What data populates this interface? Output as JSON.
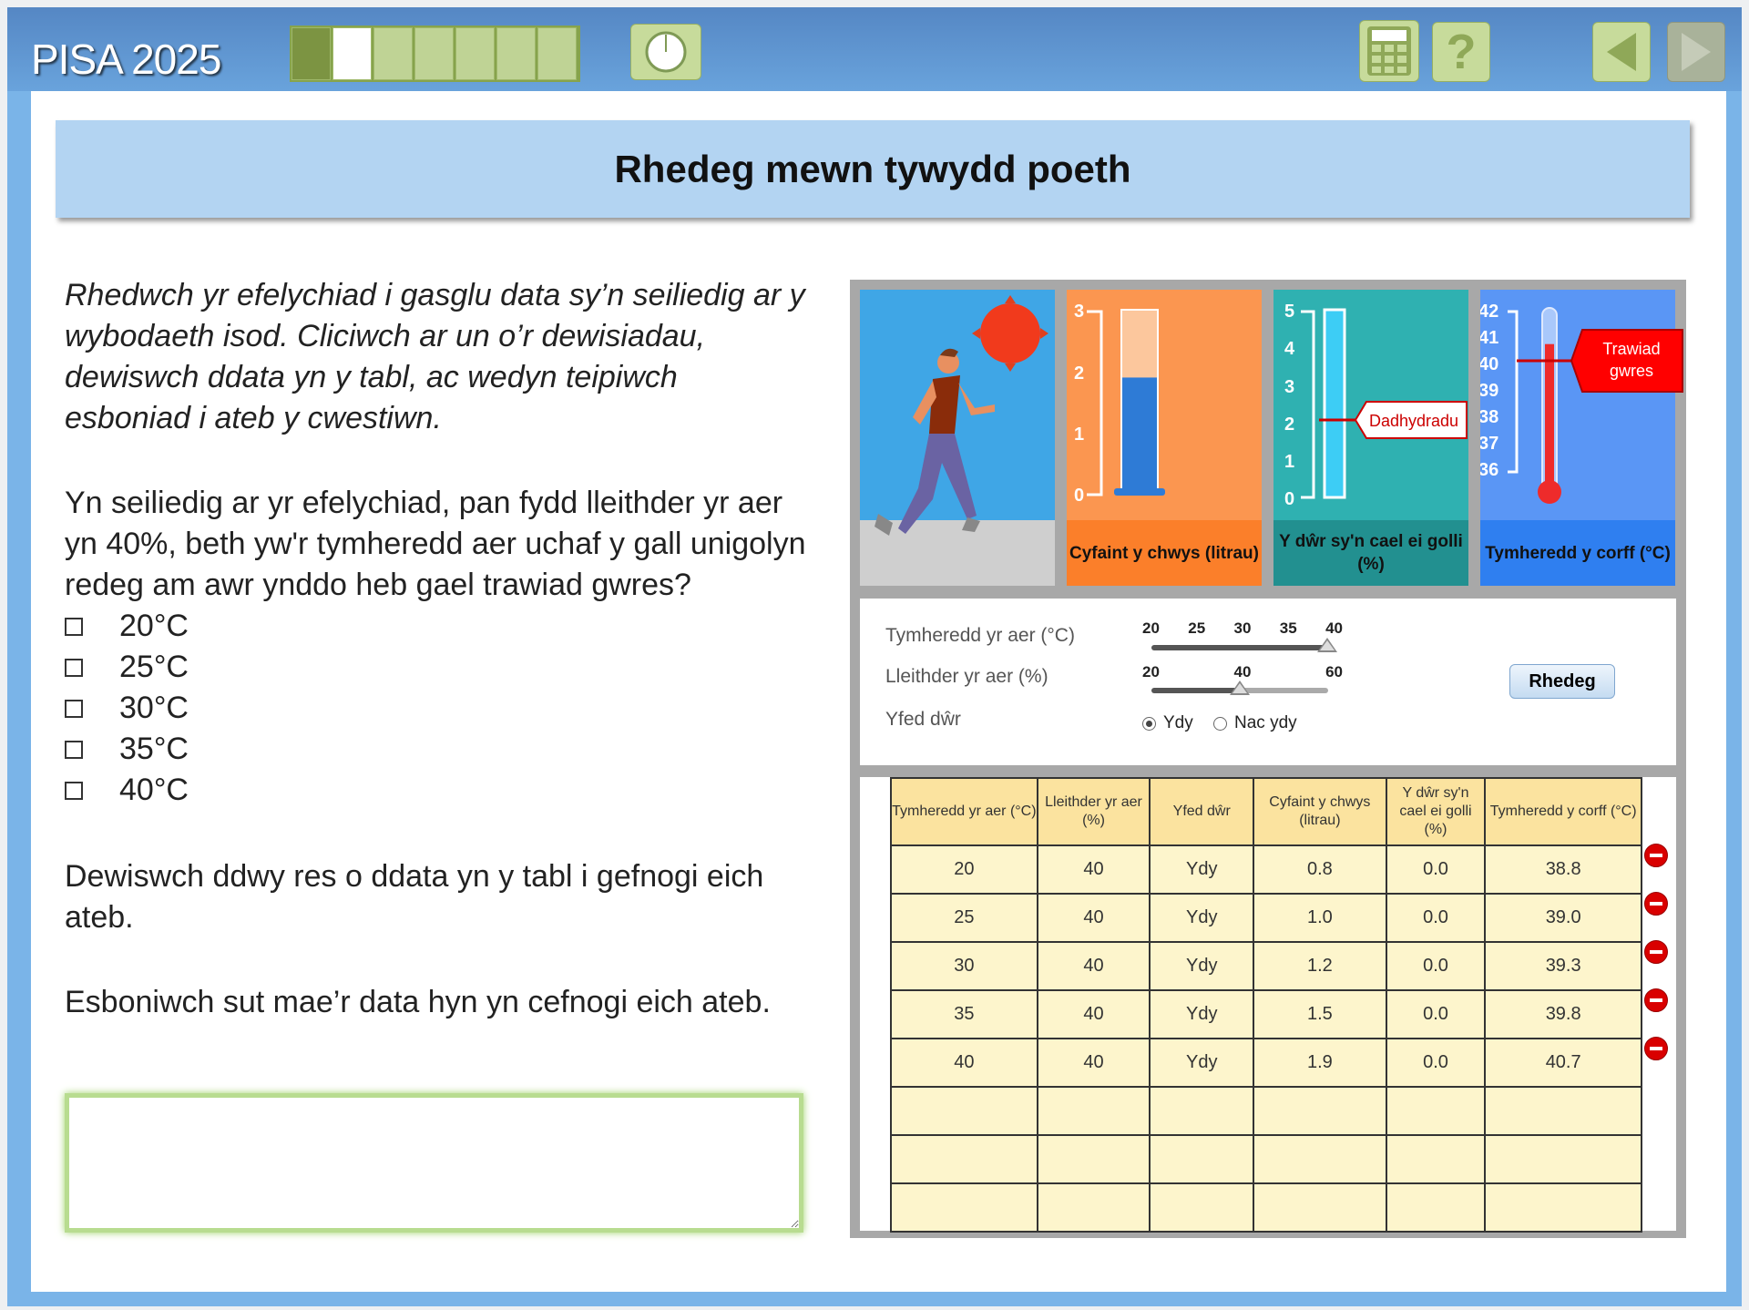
{
  "header": {
    "logo": "PISA 2025",
    "progress": {
      "total": 7,
      "completed": 1,
      "current": 2
    },
    "icons": [
      "timer-icon",
      "calculator-icon",
      "help-icon",
      "back-arrow-icon",
      "forward-arrow-icon"
    ]
  },
  "title": "Rhedeg mewn tywydd poeth",
  "left": {
    "intro": "Rhedwch yr efelychiad i gasglu data sy’n seiliedig ar y wybodaeth isod. Cliciwch ar un o’r dewisiadau, dewiswch ddata yn y tabl, ac wedyn teipiwch esboniad i ateb y cwestiwn.",
    "question": "Yn seiliedig ar yr efelychiad, pan fydd lleithder yr aer yn 40%, beth yw'r tymheredd aer uchaf y gall unigolyn redeg am awr ynddo heb gael trawiad gwres?",
    "options": [
      "20°C",
      "25°C",
      "30°C",
      "35°C",
      "40°C"
    ],
    "instruction1": "Dewiswch ddwy res o ddata yn y tabl i gefnogi eich ateb.",
    "instruction2": "Esboniwch sut mae’r data hyn yn cefnogi eich ateb.",
    "answer_value": ""
  },
  "gauges": {
    "sweat": {
      "label": "Cyfaint y chwys (litrau)",
      "ticks": [
        "3",
        "2",
        "1",
        "0"
      ],
      "value": 1.9,
      "color": "#fb9650"
    },
    "water": {
      "label": "Y dŵr sy'n cael ei golli (%)",
      "ticks": [
        "5",
        "4",
        "3",
        "2",
        "1",
        "0"
      ],
      "value": 0.0,
      "marker": "Dadhydradu",
      "color": "#2fb1b1"
    },
    "body": {
      "label": "Tymheredd y corff (°C)",
      "ticks": [
        "42",
        "41",
        "40",
        "39",
        "38",
        "37",
        "36"
      ],
      "value": 40.7,
      "marker": "Trawiad gwres",
      "color": "#5a96f5"
    }
  },
  "controls": {
    "air_temp": {
      "label": "Tymheredd yr aer (°C)",
      "ticks": [
        "20",
        "25",
        "30",
        "35",
        "40"
      ],
      "value": 40
    },
    "humidity": {
      "label": "Lleithder yr aer (%)",
      "ticks": [
        "20",
        "40",
        "60"
      ],
      "value": 40
    },
    "drink": {
      "label": "Yfed dŵr",
      "options": [
        "Ydy",
        "Nac ydy"
      ],
      "selected": "Ydy"
    },
    "run_label": "Rhedeg"
  },
  "table": {
    "headers": [
      "Tymheredd yr aer (°C)",
      "Lleithder yr aer (%)",
      "Yfed dŵr",
      "Cyfaint y chwys (litrau)",
      "Y dŵr sy'n cael ei golli (%)",
      "Tymheredd y corff (°C)"
    ],
    "rows": [
      [
        "20",
        "40",
        "Ydy",
        "0.8",
        "0.0",
        "38.8"
      ],
      [
        "25",
        "40",
        "Ydy",
        "1.0",
        "0.0",
        "39.0"
      ],
      [
        "30",
        "40",
        "Ydy",
        "1.2",
        "0.0",
        "39.3"
      ],
      [
        "35",
        "40",
        "Ydy",
        "1.5",
        "0.0",
        "39.8"
      ],
      [
        "40",
        "40",
        "Ydy",
        "1.9",
        "0.0",
        "40.7"
      ],
      [
        "",
        "",
        "",
        "",
        "",
        ""
      ],
      [
        "",
        "",
        "",
        "",
        "",
        ""
      ],
      [
        "",
        "",
        "",
        "",
        "",
        ""
      ]
    ]
  }
}
